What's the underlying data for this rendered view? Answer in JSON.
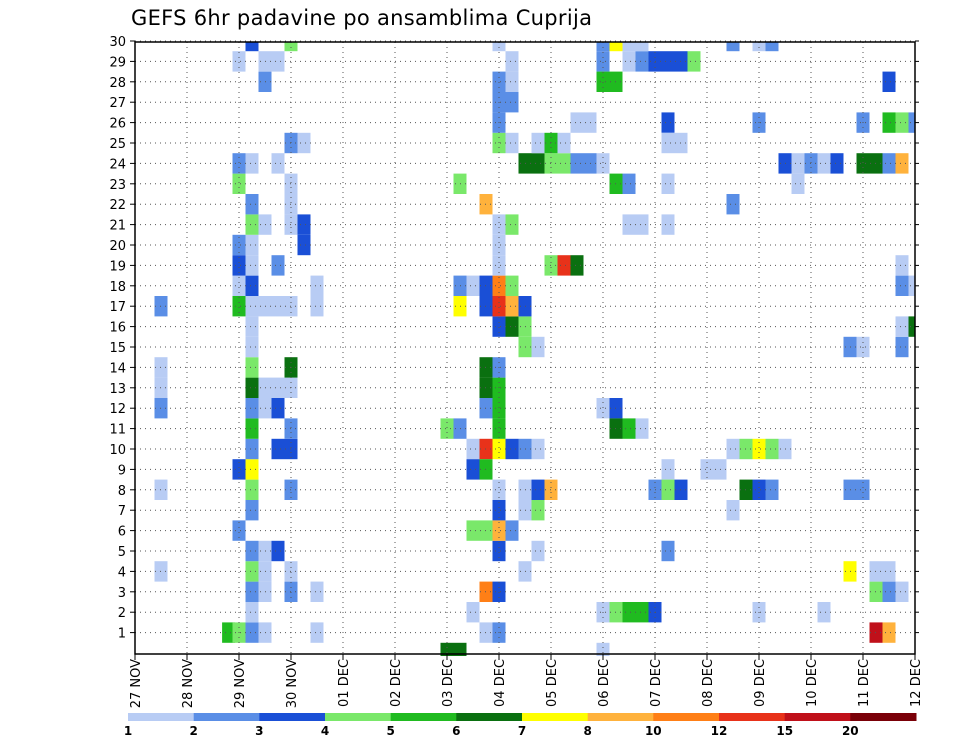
{
  "chart_data": {
    "type": "heatmap",
    "title": "GEFS 6hr padavine po ansamblima Cuprija",
    "xlabel": "",
    "ylabel": "",
    "x_tick_labels": [
      "27 NOV",
      "28 NOV",
      "29 NOV",
      "30 NOV",
      "01 DEC",
      "02 DEC",
      "03 DEC",
      "04 DEC",
      "05 DEC",
      "06 DEC",
      "07 DEC",
      "08 DEC",
      "09 DEC",
      "10 DEC",
      "11 DEC",
      "12 DEC"
    ],
    "y_tick_labels": [
      "1",
      "2",
      "3",
      "4",
      "5",
      "6",
      "7",
      "8",
      "9",
      "10",
      "11",
      "12",
      "13",
      "14",
      "15",
      "16",
      "17",
      "18",
      "19",
      "20",
      "21",
      "22",
      "23",
      "24",
      "25",
      "26",
      "27",
      "28",
      "29",
      "30"
    ],
    "grid": true,
    "legend": {
      "position": "bottom",
      "labels": [
        "1",
        "2",
        "3",
        "4",
        "5",
        "6",
        "7",
        "8",
        "10",
        "12",
        "15",
        "20"
      ],
      "colors": [
        "#b8ccf4",
        "#5a8ee6",
        "#1a4fd6",
        "#7ae86a",
        "#20bb20",
        "#0a7010",
        "#ffff00",
        "#ffb23c",
        "#ff7f16",
        "#e8321a",
        "#c0101a",
        "#7a0008"
      ]
    },
    "cells": [
      [
        27.5,
        17,
        1
      ],
      [
        27.5,
        14,
        0
      ],
      [
        27.5,
        13,
        0
      ],
      [
        27.5,
        12,
        1
      ],
      [
        27.5,
        8,
        0
      ],
      [
        27.5,
        4,
        0
      ],
      [
        28.8,
        1,
        4
      ],
      [
        29.0,
        1,
        3
      ],
      [
        29.0,
        6,
        1
      ],
      [
        29.0,
        9,
        2
      ],
      [
        29.0,
        17,
        4
      ],
      [
        29.0,
        18,
        0
      ],
      [
        29.0,
        19,
        2
      ],
      [
        29.0,
        20,
        1
      ],
      [
        29.0,
        23,
        3
      ],
      [
        29.0,
        24,
        1
      ],
      [
        29.0,
        29,
        0
      ],
      [
        29.25,
        1,
        1
      ],
      [
        29.25,
        2,
        0
      ],
      [
        29.25,
        3,
        1
      ],
      [
        29.25,
        4,
        3
      ],
      [
        29.25,
        5,
        1
      ],
      [
        29.25,
        7,
        1
      ],
      [
        29.25,
        8,
        3
      ],
      [
        29.25,
        9,
        6
      ],
      [
        29.25,
        10,
        1
      ],
      [
        29.25,
        11,
        4
      ],
      [
        29.25,
        12,
        1
      ],
      [
        29.25,
        13,
        5
      ],
      [
        29.25,
        14,
        3
      ],
      [
        29.25,
        15,
        0
      ],
      [
        29.25,
        16,
        0
      ],
      [
        29.25,
        17,
        0
      ],
      [
        29.25,
        18,
        2
      ],
      [
        29.25,
        19,
        0
      ],
      [
        29.25,
        20,
        0
      ],
      [
        29.25,
        21,
        3
      ],
      [
        29.25,
        22,
        1
      ],
      [
        29.25,
        24,
        0
      ],
      [
        29.25,
        30,
        2
      ],
      [
        29.5,
        1,
        0
      ],
      [
        29.5,
        3,
        0
      ],
      [
        29.5,
        4,
        0
      ],
      [
        29.5,
        5,
        0
      ],
      [
        29.5,
        12,
        0
      ],
      [
        29.5,
        13,
        0
      ],
      [
        29.5,
        17,
        0
      ],
      [
        29.5,
        21,
        0
      ],
      [
        29.5,
        28,
        1
      ],
      [
        29.5,
        29,
        0
      ],
      [
        29.75,
        5,
        2
      ],
      [
        29.75,
        10,
        2
      ],
      [
        29.75,
        12,
        2
      ],
      [
        29.75,
        13,
        0
      ],
      [
        29.75,
        17,
        0
      ],
      [
        29.75,
        19,
        1
      ],
      [
        29.75,
        24,
        0
      ],
      [
        29.75,
        29,
        0
      ],
      [
        30.0,
        3,
        1
      ],
      [
        30.0,
        4,
        0
      ],
      [
        30.0,
        8,
        1
      ],
      [
        30.0,
        10,
        2
      ],
      [
        30.0,
        11,
        1
      ],
      [
        30.0,
        13,
        0
      ],
      [
        30.0,
        14,
        5
      ],
      [
        30.0,
        17,
        0
      ],
      [
        30.0,
        21,
        0
      ],
      [
        30.0,
        22,
        0
      ],
      [
        30.0,
        23,
        0
      ],
      [
        30.0,
        25,
        1
      ],
      [
        30.0,
        30,
        3
      ],
      [
        30.25,
        20,
        2
      ],
      [
        30.25,
        21,
        2
      ],
      [
        30.25,
        25,
        0
      ],
      [
        30.5,
        1,
        0
      ],
      [
        30.5,
        3,
        0
      ],
      [
        30.5,
        17,
        0
      ],
      [
        30.5,
        18,
        0
      ],
      [
        33.0,
        0,
        5
      ],
      [
        33.25,
        0,
        5
      ],
      [
        33.0,
        11,
        3
      ],
      [
        33.25,
        11,
        1
      ],
      [
        33.25,
        23,
        3
      ],
      [
        33.25,
        17,
        6
      ],
      [
        33.25,
        18,
        1
      ],
      [
        33.5,
        2,
        0
      ],
      [
        33.5,
        10,
        0
      ],
      [
        33.5,
        9,
        2
      ],
      [
        33.5,
        6,
        3
      ],
      [
        33.5,
        18,
        0
      ],
      [
        33.75,
        1,
        0
      ],
      [
        33.75,
        3,
        8
      ],
      [
        33.75,
        6,
        3
      ],
      [
        33.75,
        10,
        9
      ],
      [
        33.75,
        12,
        1
      ],
      [
        33.75,
        13,
        5
      ],
      [
        33.75,
        14,
        5
      ],
      [
        33.75,
        17,
        2
      ],
      [
        33.75,
        18,
        2
      ],
      [
        33.75,
        22,
        7
      ],
      [
        33.75,
        9,
        4
      ],
      [
        34.0,
        1,
        1
      ],
      [
        34.0,
        3,
        2
      ],
      [
        34.0,
        5,
        2
      ],
      [
        34.0,
        6,
        7
      ],
      [
        34.0,
        7,
        2
      ],
      [
        34.0,
        8,
        0
      ],
      [
        34.0,
        10,
        6
      ],
      [
        34.0,
        11,
        4
      ],
      [
        34.0,
        12,
        4
      ],
      [
        34.0,
        13,
        4
      ],
      [
        34.0,
        14,
        1
      ],
      [
        34.0,
        16,
        2
      ],
      [
        34.0,
        17,
        9
      ],
      [
        34.0,
        18,
        8
      ],
      [
        34.0,
        19,
        0
      ],
      [
        34.0,
        20,
        0
      ],
      [
        34.0,
        21,
        0
      ],
      [
        34.0,
        25,
        3
      ],
      [
        34.0,
        26,
        1
      ],
      [
        34.0,
        27,
        1
      ],
      [
        34.0,
        28,
        1
      ],
      [
        34.0,
        30,
        0
      ],
      [
        34.25,
        6,
        1
      ],
      [
        34.25,
        10,
        2
      ],
      [
        34.25,
        16,
        5
      ],
      [
        34.25,
        17,
        7
      ],
      [
        34.25,
        18,
        3
      ],
      [
        34.25,
        21,
        3
      ],
      [
        34.25,
        25,
        0
      ],
      [
        34.25,
        27,
        1
      ],
      [
        34.25,
        28,
        0
      ],
      [
        34.25,
        29,
        0
      ],
      [
        34.5,
        10,
        1
      ],
      [
        34.5,
        15,
        3
      ],
      [
        34.5,
        16,
        3
      ],
      [
        34.5,
        17,
        2
      ],
      [
        34.5,
        4,
        0
      ],
      [
        34.5,
        7,
        0
      ],
      [
        34.5,
        8,
        0
      ],
      [
        34.5,
        24,
        5
      ],
      [
        34.75,
        10,
        0
      ],
      [
        34.75,
        8,
        2
      ],
      [
        34.75,
        7,
        3
      ],
      [
        34.75,
        15,
        0
      ],
      [
        34.75,
        5,
        0
      ],
      [
        34.75,
        24,
        5
      ],
      [
        34.75,
        25,
        0
      ],
      [
        35.0,
        8,
        7
      ],
      [
        35.0,
        24,
        3
      ],
      [
        35.0,
        25,
        4
      ],
      [
        35.0,
        19,
        3
      ],
      [
        35.25,
        24,
        3
      ],
      [
        35.25,
        25,
        0
      ],
      [
        35.25,
        19,
        9
      ],
      [
        35.5,
        24,
        1
      ],
      [
        35.5,
        19,
        5
      ],
      [
        35.5,
        26,
        0
      ],
      [
        35.75,
        24,
        1
      ],
      [
        35.75,
        26,
        0
      ],
      [
        36.0,
        24,
        0
      ],
      [
        36.0,
        29,
        1
      ],
      [
        36.0,
        28,
        4
      ],
      [
        36.0,
        30,
        1
      ],
      [
        36.0,
        12,
        0
      ],
      [
        36.0,
        2,
        0
      ],
      [
        36.0,
        0,
        0
      ],
      [
        36.25,
        28,
        4
      ],
      [
        36.25,
        12,
        2
      ],
      [
        36.25,
        11,
        5
      ],
      [
        36.25,
        2,
        3
      ],
      [
        36.25,
        23,
        4
      ],
      [
        36.25,
        30,
        6
      ],
      [
        36.5,
        11,
        4
      ],
      [
        36.5,
        2,
        4
      ],
      [
        36.5,
        23,
        1
      ],
      [
        36.5,
        30,
        0
      ],
      [
        36.5,
        29,
        0
      ],
      [
        36.5,
        21,
        0
      ],
      [
        36.75,
        2,
        4
      ],
      [
        36.75,
        11,
        0
      ],
      [
        36.75,
        21,
        0
      ],
      [
        36.75,
        29,
        1
      ],
      [
        36.75,
        30,
        0
      ],
      [
        37.0,
        2,
        2
      ],
      [
        37.0,
        8,
        1
      ],
      [
        37.0,
        29,
        2
      ],
      [
        37.25,
        26,
        2
      ],
      [
        37.25,
        25,
        0
      ],
      [
        37.25,
        23,
        0
      ],
      [
        37.25,
        29,
        2
      ],
      [
        37.25,
        21,
        0
      ],
      [
        37.25,
        9,
        0
      ],
      [
        37.25,
        8,
        3
      ],
      [
        37.25,
        5,
        1
      ],
      [
        37.5,
        29,
        2
      ],
      [
        37.5,
        8,
        2
      ],
      [
        37.5,
        25,
        0
      ],
      [
        37.75,
        29,
        3
      ],
      [
        38.0,
        9,
        0
      ],
      [
        38.25,
        9,
        0
      ],
      [
        38.5,
        22,
        1
      ],
      [
        38.5,
        10,
        0
      ],
      [
        38.5,
        7,
        0
      ],
      [
        38.5,
        30,
        1
      ],
      [
        38.75,
        10,
        3
      ],
      [
        38.75,
        8,
        5
      ],
      [
        39.0,
        10,
        6
      ],
      [
        39.0,
        8,
        2
      ],
      [
        39.0,
        26,
        1
      ],
      [
        39.0,
        2,
        0
      ],
      [
        39.0,
        30,
        0
      ],
      [
        39.25,
        10,
        3
      ],
      [
        39.25,
        8,
        1
      ],
      [
        39.25,
        30,
        1
      ],
      [
        39.5,
        10,
        0
      ],
      [
        39.5,
        24,
        2
      ],
      [
        39.75,
        24,
        0
      ],
      [
        39.75,
        23,
        0
      ],
      [
        40.0,
        24,
        1
      ],
      [
        40.25,
        24,
        0
      ],
      [
        40.25,
        2,
        0
      ],
      [
        40.5,
        24,
        2
      ],
      [
        40.75,
        4,
        6
      ],
      [
        40.75,
        8,
        1
      ],
      [
        40.75,
        15,
        1
      ],
      [
        41.0,
        8,
        1
      ],
      [
        41.0,
        15,
        0
      ],
      [
        41.0,
        24,
        5
      ],
      [
        41.0,
        26,
        1
      ],
      [
        41.25,
        1,
        10
      ],
      [
        41.25,
        3,
        3
      ],
      [
        41.25,
        4,
        0
      ],
      [
        41.25,
        24,
        5
      ],
      [
        41.5,
        1,
        7
      ],
      [
        41.5,
        3,
        1
      ],
      [
        41.5,
        4,
        0
      ],
      [
        41.5,
        24,
        1
      ],
      [
        41.5,
        26,
        4
      ],
      [
        41.5,
        28,
        2
      ],
      [
        41.75,
        3,
        0
      ],
      [
        41.75,
        15,
        1
      ],
      [
        41.75,
        16,
        0
      ],
      [
        41.75,
        18,
        1
      ],
      [
        41.75,
        19,
        0
      ],
      [
        41.75,
        24,
        7
      ],
      [
        41.75,
        26,
        3
      ],
      [
        42.0,
        16,
        5
      ],
      [
        42.0,
        18,
        0
      ],
      [
        42.0,
        26,
        1
      ]
    ]
  }
}
